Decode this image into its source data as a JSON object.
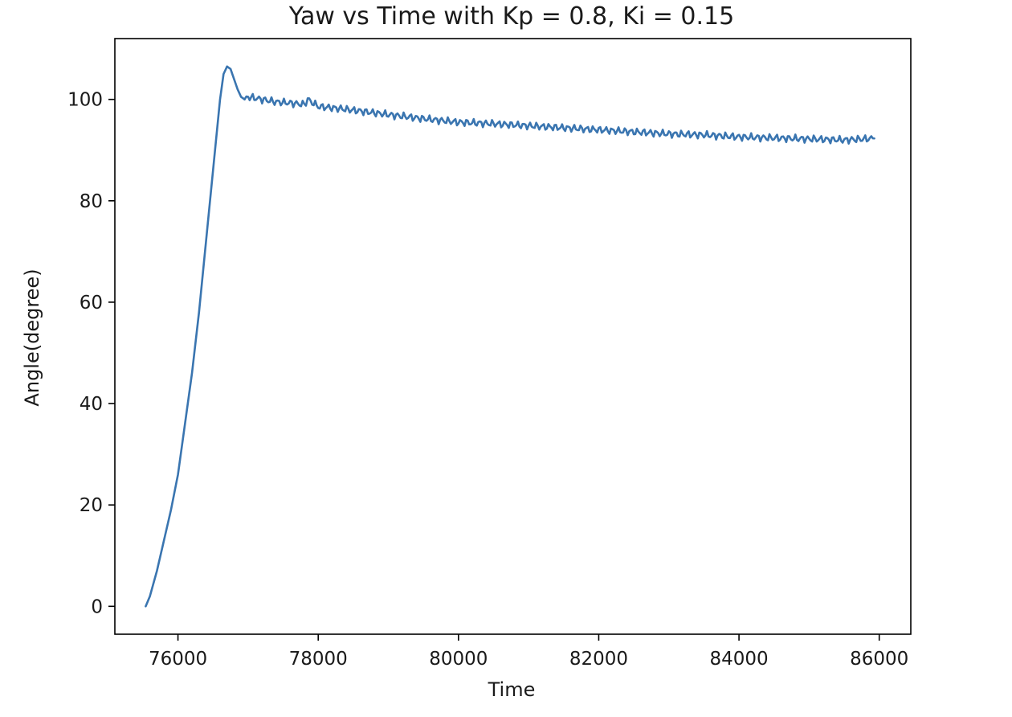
{
  "chart_data": {
    "type": "line",
    "title": "Yaw vs Time with Kp = 0.8, Ki = 0.15",
    "xlabel": "Time",
    "ylabel": "Angle(degree)",
    "xlim": [
      75100,
      86450
    ],
    "ylim": [
      -5.5,
      112
    ],
    "xticks": [
      76000,
      78000,
      80000,
      82000,
      84000,
      86000
    ],
    "yticks": [
      0,
      20,
      40,
      60,
      80,
      100
    ],
    "grid": false,
    "legend": "none",
    "series": [
      {
        "color": "#3a75b0",
        "x": [
          75540,
          75600,
          75700,
          75800,
          75900,
          76000,
          76100,
          76200,
          76300,
          76400,
          76500,
          76600,
          76650,
          76700,
          76750,
          76800,
          76850,
          76900,
          76950,
          77000,
          77200,
          77400,
          77600,
          77800,
          77850,
          78000,
          78300,
          78600,
          79000,
          79500,
          80000,
          80500,
          81000,
          81500,
          82000,
          82500,
          83000,
          83500,
          84000,
          84500,
          85000,
          85500,
          85930
        ],
        "y": [
          0,
          2,
          7,
          13,
          19,
          26,
          36,
          46,
          58,
          72,
          86,
          100,
          105,
          106.5,
          106,
          104,
          102,
          100.5,
          100,
          100.5,
          100,
          99.5,
          99.3,
          99,
          100,
          98.6,
          98.2,
          97.7,
          97,
          96.2,
          95.5,
          95.2,
          94.8,
          94.4,
          94,
          93.6,
          93.2,
          93,
          92.6,
          92.4,
          92.2,
          92,
          92.3
        ]
      }
    ]
  }
}
